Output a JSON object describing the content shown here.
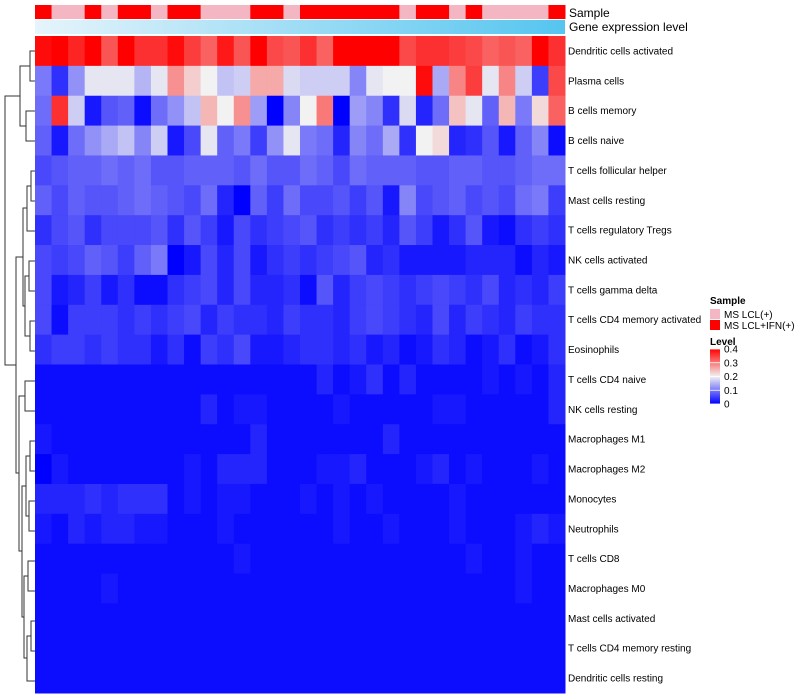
{
  "chart_data": {
    "type": "heatmap",
    "annotations": {
      "sample_label": "Sample",
      "gene_label": "Gene expression level"
    },
    "sample_groups": [
      "MS LCL(+)",
      "MS LCL+IFN(+)"
    ],
    "sample_colors": [
      "#f4b6c2",
      "#ff0000"
    ],
    "sample_assignment": [
      1,
      0,
      0,
      1,
      0,
      1,
      1,
      0,
      1,
      1,
      0,
      0,
      0,
      1,
      1,
      0,
      1,
      1,
      1,
      1,
      1,
      1,
      0,
      1,
      1,
      0,
      1,
      0,
      0,
      0,
      0,
      1
    ],
    "rows": [
      "Dendritic cells activated",
      "Plasma cells",
      "B cells memory",
      "B cells naive",
      "T cells follicular helper",
      "Mast cells resting",
      "T cells regulatory  Tregs",
      "NK cells activated",
      "T cells gamma delta",
      "T cells CD4 memory activated",
      "Eosinophils",
      "T cells CD4 naive",
      "NK cells resting",
      "Macrophages M1",
      "Macrophages M2",
      "Monocytes",
      "Neutrophils",
      "T cells CD8",
      "Macrophages M0",
      "Mast cells activated",
      "T cells CD4 memory resting",
      "Dendritic cells resting"
    ],
    "values": [
      [
        0.39,
        0.4,
        0.37,
        0.4,
        0.33,
        0.4,
        0.36,
        0.36,
        0.39,
        0.35,
        0.32,
        0.38,
        0.33,
        0.4,
        0.34,
        0.33,
        0.36,
        0.32,
        0.4,
        0.4,
        0.4,
        0.4,
        0.34,
        0.36,
        0.36,
        0.35,
        0.34,
        0.32,
        0.33,
        0.32,
        0.4,
        0.36
      ],
      [
        0.1,
        0.04,
        0.12,
        0.19,
        0.19,
        0.19,
        0.15,
        0.19,
        0.28,
        0.23,
        0.2,
        0.16,
        0.17,
        0.26,
        0.26,
        0.18,
        0.17,
        0.17,
        0.17,
        0.11,
        0.19,
        0.2,
        0.2,
        0.39,
        0.14,
        0.29,
        0.35,
        0.19,
        0.29,
        0.17,
        0.05,
        0.34
      ],
      [
        0.09,
        0.36,
        0.17,
        0.02,
        0.07,
        0.08,
        0.01,
        0.09,
        0.12,
        0.16,
        0.25,
        0.2,
        0.28,
        0.13,
        0.0,
        0.11,
        0.2,
        0.3,
        0.0,
        0.13,
        0.11,
        0.04,
        0.18,
        0.03,
        0.09,
        0.24,
        0.19,
        0.08,
        0.25,
        0.1,
        0.22,
        0.32
      ],
      [
        0.08,
        0.02,
        0.09,
        0.12,
        0.14,
        0.16,
        0.11,
        0.17,
        0.02,
        0.06,
        0.19,
        0.08,
        0.1,
        0.05,
        0.12,
        0.19,
        0.1,
        0.09,
        0.03,
        0.11,
        0.09,
        0.14,
        0.04,
        0.2,
        0.22,
        0.03,
        0.04,
        0.07,
        0.02,
        0.08,
        0.11,
        0.01
      ],
      [
        0.06,
        0.07,
        0.08,
        0.08,
        0.09,
        0.08,
        0.09,
        0.07,
        0.07,
        0.08,
        0.08,
        0.08,
        0.07,
        0.09,
        0.07,
        0.07,
        0.09,
        0.08,
        0.06,
        0.09,
        0.08,
        0.08,
        0.08,
        0.07,
        0.07,
        0.08,
        0.08,
        0.07,
        0.07,
        0.08,
        0.09,
        0.09
      ],
      [
        0.08,
        0.06,
        0.08,
        0.07,
        0.07,
        0.08,
        0.09,
        0.08,
        0.07,
        0.06,
        0.09,
        0.03,
        0.0,
        0.08,
        0.05,
        0.09,
        0.06,
        0.06,
        0.07,
        0.05,
        0.07,
        0.02,
        0.11,
        0.06,
        0.07,
        0.08,
        0.06,
        0.07,
        0.06,
        0.09,
        0.1,
        0.05
      ],
      [
        0.04,
        0.06,
        0.07,
        0.04,
        0.06,
        0.06,
        0.06,
        0.07,
        0.04,
        0.07,
        0.05,
        0.02,
        0.06,
        0.04,
        0.05,
        0.06,
        0.07,
        0.04,
        0.05,
        0.04,
        0.05,
        0.03,
        0.07,
        0.05,
        0.02,
        0.04,
        0.07,
        0.02,
        0.01,
        0.04,
        0.05,
        0.04
      ],
      [
        0.06,
        0.05,
        0.06,
        0.08,
        0.07,
        0.05,
        0.08,
        0.1,
        0.0,
        0.02,
        0.06,
        0.03,
        0.06,
        0.02,
        0.04,
        0.05,
        0.04,
        0.05,
        0.06,
        0.07,
        0.03,
        0.04,
        0.02,
        0.02,
        0.02,
        0.02,
        0.03,
        0.03,
        0.03,
        0.01,
        0.03,
        0.02
      ],
      [
        0.06,
        0.02,
        0.03,
        0.05,
        0.02,
        0.04,
        0.01,
        0.01,
        0.04,
        0.05,
        0.06,
        0.03,
        0.06,
        0.03,
        0.03,
        0.04,
        0.01,
        0.07,
        0.03,
        0.05,
        0.06,
        0.05,
        0.04,
        0.05,
        0.06,
        0.05,
        0.04,
        0.06,
        0.03,
        0.04,
        0.03,
        0.05
      ],
      [
        0.06,
        0.01,
        0.05,
        0.05,
        0.05,
        0.04,
        0.05,
        0.04,
        0.05,
        0.06,
        0.03,
        0.05,
        0.04,
        0.04,
        0.03,
        0.05,
        0.04,
        0.04,
        0.03,
        0.05,
        0.06,
        0.05,
        0.04,
        0.03,
        0.06,
        0.03,
        0.05,
        0.04,
        0.03,
        0.05,
        0.04,
        0.04
      ],
      [
        0.04,
        0.05,
        0.05,
        0.04,
        0.05,
        0.04,
        0.04,
        0.02,
        0.04,
        0.01,
        0.05,
        0.04,
        0.06,
        0.02,
        0.02,
        0.03,
        0.04,
        0.04,
        0.03,
        0.04,
        0.02,
        0.03,
        0.01,
        0.02,
        0.04,
        0.03,
        0.01,
        0.02,
        0.04,
        0.01,
        0.02,
        0.04
      ],
      [
        0.01,
        0.01,
        0.01,
        0.01,
        0.01,
        0.01,
        0.01,
        0.01,
        0.01,
        0.01,
        0.01,
        0.01,
        0.01,
        0.01,
        0.01,
        0.01,
        0.01,
        0.03,
        0.01,
        0.02,
        0.04,
        0.01,
        0.03,
        0.01,
        0.01,
        0.01,
        0.01,
        0.02,
        0.01,
        0.02,
        0.01,
        0.03
      ],
      [
        0.01,
        0.01,
        0.01,
        0.01,
        0.01,
        0.01,
        0.01,
        0.01,
        0.01,
        0.01,
        0.03,
        0.01,
        0.02,
        0.02,
        0.01,
        0.01,
        0.01,
        0.01,
        0.02,
        0.01,
        0.01,
        0.01,
        0.01,
        0.01,
        0.02,
        0.02,
        0.01,
        0.01,
        0.01,
        0.01,
        0.01,
        0.03
      ],
      [
        0.02,
        0.01,
        0.01,
        0.01,
        0.01,
        0.01,
        0.01,
        0.01,
        0.01,
        0.01,
        0.01,
        0.01,
        0.01,
        0.03,
        0.01,
        0.01,
        0.01,
        0.01,
        0.01,
        0.01,
        0.01,
        0.03,
        0.01,
        0.01,
        0.01,
        0.01,
        0.01,
        0.01,
        0.01,
        0.01,
        0.01,
        0.01
      ],
      [
        0.0,
        0.02,
        0.01,
        0.01,
        0.01,
        0.01,
        0.01,
        0.01,
        0.01,
        0.02,
        0.01,
        0.03,
        0.03,
        0.03,
        0.01,
        0.01,
        0.01,
        0.02,
        0.02,
        0.03,
        0.01,
        0.01,
        0.01,
        0.02,
        0.03,
        0.01,
        0.02,
        0.01,
        0.01,
        0.01,
        0.02,
        0.01
      ],
      [
        0.03,
        0.03,
        0.03,
        0.04,
        0.03,
        0.04,
        0.04,
        0.04,
        0.01,
        0.02,
        0.01,
        0.02,
        0.02,
        0.01,
        0.01,
        0.01,
        0.02,
        0.01,
        0.02,
        0.01,
        0.02,
        0.01,
        0.01,
        0.01,
        0.01,
        0.02,
        0.01,
        0.01,
        0.01,
        0.01,
        0.01,
        0.01
      ],
      [
        0.02,
        0.01,
        0.03,
        0.02,
        0.03,
        0.03,
        0.02,
        0.02,
        0.01,
        0.01,
        0.01,
        0.02,
        0.01,
        0.01,
        0.01,
        0.01,
        0.01,
        0.01,
        0.02,
        0.01,
        0.01,
        0.02,
        0.01,
        0.01,
        0.01,
        0.02,
        0.01,
        0.01,
        0.01,
        0.02,
        0.03,
        0.02
      ],
      [
        0.01,
        0.01,
        0.01,
        0.01,
        0.01,
        0.01,
        0.01,
        0.01,
        0.01,
        0.01,
        0.01,
        0.01,
        0.02,
        0.01,
        0.01,
        0.01,
        0.01,
        0.01,
        0.01,
        0.01,
        0.01,
        0.01,
        0.01,
        0.01,
        0.01,
        0.01,
        0.02,
        0.01,
        0.01,
        0.02,
        0.01,
        0.01
      ],
      [
        0.01,
        0.01,
        0.01,
        0.01,
        0.02,
        0.01,
        0.01,
        0.01,
        0.01,
        0.01,
        0.01,
        0.01,
        0.01,
        0.01,
        0.01,
        0.01,
        0.01,
        0.01,
        0.01,
        0.01,
        0.01,
        0.01,
        0.01,
        0.01,
        0.01,
        0.01,
        0.01,
        0.01,
        0.01,
        0.02,
        0.01,
        0.01
      ],
      [
        0.01,
        0.01,
        0.01,
        0.01,
        0.01,
        0.01,
        0.01,
        0.01,
        0.01,
        0.01,
        0.01,
        0.01,
        0.01,
        0.01,
        0.01,
        0.01,
        0.01,
        0.01,
        0.01,
        0.01,
        0.01,
        0.01,
        0.01,
        0.01,
        0.01,
        0.01,
        0.01,
        0.01,
        0.01,
        0.01,
        0.01,
        0.01
      ],
      [
        0.01,
        0.01,
        0.01,
        0.01,
        0.01,
        0.01,
        0.01,
        0.01,
        0.01,
        0.01,
        0.01,
        0.01,
        0.01,
        0.01,
        0.01,
        0.01,
        0.01,
        0.01,
        0.01,
        0.01,
        0.01,
        0.01,
        0.01,
        0.01,
        0.01,
        0.01,
        0.01,
        0.01,
        0.01,
        0.01,
        0.01,
        0.01
      ],
      [
        0.01,
        0.01,
        0.01,
        0.01,
        0.01,
        0.01,
        0.01,
        0.01,
        0.01,
        0.01,
        0.01,
        0.01,
        0.01,
        0.01,
        0.01,
        0.01,
        0.01,
        0.01,
        0.01,
        0.01,
        0.01,
        0.01,
        0.01,
        0.01,
        0.01,
        0.01,
        0.01,
        0.01,
        0.01,
        0.01,
        0.01,
        0.01
      ]
    ],
    "color_scale": {
      "min": 0,
      "max": 0.4,
      "low": "#0000ff",
      "mid": "#f2f2f2",
      "high": "#ff0000",
      "ticks": [
        "0.4",
        "0.3",
        "0.2",
        "0.1",
        "0"
      ],
      "tick_values": [
        0.4,
        0.3,
        0.2,
        0.1,
        0
      ]
    },
    "legend": {
      "sample_title": "Sample",
      "level_title": "Level",
      "items": [
        "MS LCL(+)",
        "MS LCL+IFN(+)"
      ]
    },
    "gene_expression_gradient": [
      "#e6f4fb",
      "#55c5ef"
    ]
  }
}
